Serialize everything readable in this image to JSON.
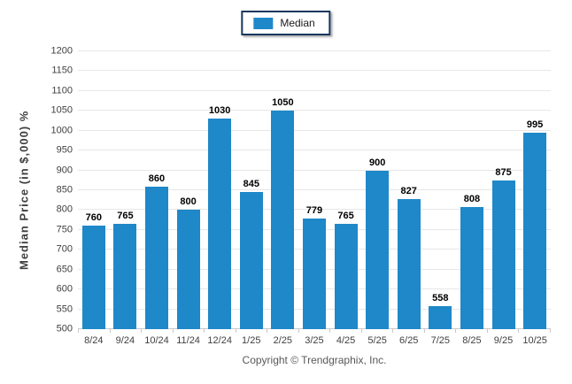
{
  "legend": {
    "label": "Median"
  },
  "footer": {
    "copyright": "Copyright © Trendgraphix, Inc."
  },
  "colors": {
    "bar": "#1E88C9",
    "legend_border": "#17375E",
    "gridline": "#E7E7E7",
    "axis_line": "#C9C9C9",
    "tick_label": "#404040",
    "value_label": "#000000",
    "copyright": "#595959"
  },
  "chart_data": {
    "type": "bar",
    "categories": [
      "8/24",
      "9/24",
      "10/24",
      "11/24",
      "12/24",
      "1/25",
      "2/25",
      "3/25",
      "4/25",
      "5/25",
      "6/25",
      "7/25",
      "8/25",
      "9/25",
      "10/25"
    ],
    "series": [
      {
        "name": "Median",
        "values": [
          760,
          765,
          860,
          800,
          1030,
          845,
          1050,
          779,
          765,
          900,
          827,
          558,
          808,
          875,
          995
        ]
      }
    ],
    "title": "",
    "xlabel": "",
    "ylabel": "Median Price (in $,000) %",
    "ylim": [
      500,
      1200
    ],
    "ytick_step": 50,
    "grid": true,
    "legend_position": "top-center",
    "bar_color": "#1E88C9"
  }
}
